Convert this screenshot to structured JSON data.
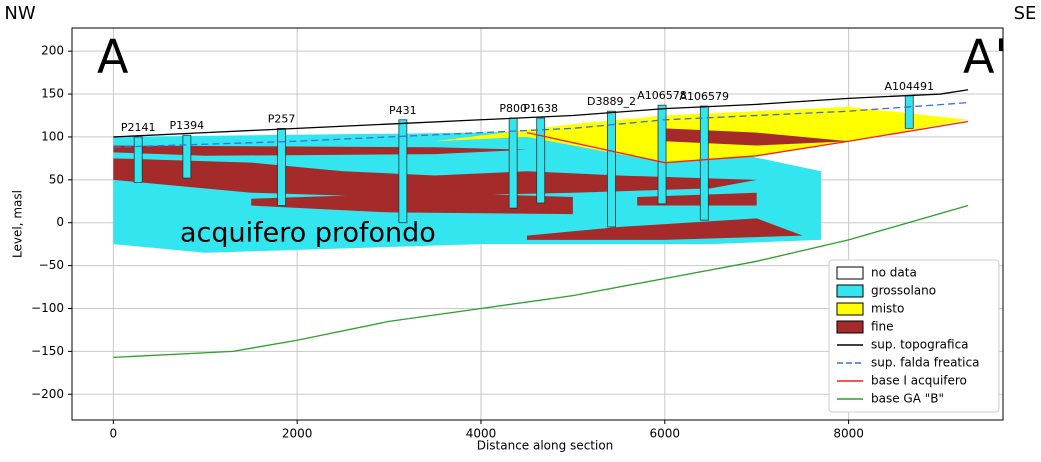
{
  "chart_data": {
    "type": "section",
    "corner_left": "NW",
    "corner_right": "SE",
    "section_start": "A",
    "section_end": "A'",
    "annotation": "acquifero profondo",
    "xlabel": "Distance along section",
    "ylabel": "Level, masl",
    "xlim": [
      -450,
      9680
    ],
    "ylim": [
      -230,
      227
    ],
    "xticks": [
      0,
      2000,
      4000,
      6000,
      8000
    ],
    "yticks": [
      {
        "value": -200,
        "label": "−200"
      },
      {
        "value": -150,
        "label": "−150"
      },
      {
        "value": -100,
        "label": "−100"
      },
      {
        "value": -50,
        "label": "−50"
      },
      0,
      50,
      100,
      150,
      200
    ],
    "grid": true,
    "legend": "lower right",
    "layers": [
      {
        "name": "no data",
        "color": "#ffffff",
        "polygons": []
      },
      {
        "name": "grossolano",
        "color": "#33e5ee",
        "polygons": [
          [
            [
              0,
              100
            ],
            [
              4000,
              105
            ],
            [
              5500,
              110
            ],
            [
              7700,
              60
            ],
            [
              7700,
              -20
            ],
            [
              6500,
              -25
            ],
            [
              4000,
              -25
            ],
            [
              1000,
              -35
            ],
            [
              0,
              -25
            ]
          ]
        ]
      },
      {
        "name": "misto",
        "color": "#ffff00",
        "polygons": [
          [
            [
              3500,
              95
            ],
            [
              5000,
              115
            ],
            [
              6000,
              125
            ],
            [
              8000,
              135
            ],
            [
              9300,
              120
            ],
            [
              8000,
              95
            ],
            [
              7000,
              78
            ],
            [
              6000,
              70
            ],
            [
              4500,
              100
            ]
          ]
        ]
      },
      {
        "name": "fine",
        "color": "#a52a2a",
        "polygons": [
          [
            [
              0,
              75
            ],
            [
              1500,
              70
            ],
            [
              2500,
              60
            ],
            [
              3500,
              55
            ],
            [
              4500,
              60
            ],
            [
              5500,
              55
            ],
            [
              7000,
              50
            ],
            [
              6500,
              40
            ],
            [
              5000,
              35
            ],
            [
              3000,
              30
            ],
            [
              1500,
              35
            ],
            [
              0,
              50
            ]
          ],
          [
            [
              1500,
              28
            ],
            [
              3500,
              35
            ],
            [
              5000,
              30
            ],
            [
              5000,
              10
            ],
            [
              3000,
              12
            ],
            [
              1500,
              20
            ]
          ],
          [
            [
              4500,
              -15
            ],
            [
              5500,
              -5
            ],
            [
              7000,
              5
            ],
            [
              7500,
              -15
            ],
            [
              6000,
              -20
            ],
            [
              4500,
              -20
            ]
          ],
          [
            [
              5700,
              30
            ],
            [
              7000,
              35
            ],
            [
              7000,
              20
            ],
            [
              5700,
              20
            ]
          ],
          [
            [
              0,
              90
            ],
            [
              3500,
              88
            ],
            [
              4500,
              85
            ],
            [
              3500,
              80
            ],
            [
              1000,
              78
            ],
            [
              0,
              82
            ]
          ],
          [
            [
              6000,
              110
            ],
            [
              7000,
              105
            ],
            [
              8000,
              95
            ],
            [
              7000,
              90
            ],
            [
              6000,
              95
            ]
          ]
        ]
      }
    ],
    "wells": [
      {
        "label": "P2141",
        "x": 270,
        "top": 100,
        "bottom": 47
      },
      {
        "label": "P1394",
        "x": 800,
        "top": 102,
        "bottom": 52
      },
      {
        "label": "P257",
        "x": 1830,
        "top": 110,
        "bottom": 20
      },
      {
        "label": "P431",
        "x": 3150,
        "top": 120,
        "bottom": 0
      },
      {
        "label": "P800",
        "x": 4350,
        "top": 122,
        "bottom": 17
      },
      {
        "label": "P1638",
        "x": 4650,
        "top": 122,
        "bottom": 23
      },
      {
        "label": "D3889_2",
        "x": 5420,
        "top": 130,
        "bottom": -5
      },
      {
        "label": "A106578",
        "x": 5970,
        "top": 137,
        "bottom": 22
      },
      {
        "label": "A106579",
        "x": 6430,
        "top": 136,
        "bottom": 3
      },
      {
        "label": "A104491",
        "x": 8660,
        "top": 148,
        "bottom": 110
      }
    ],
    "series": [
      {
        "name": "sup. topografica",
        "color": "#000000",
        "dash": false,
        "x": [
          0,
          1000,
          2000,
          3000,
          4000,
          5000,
          6000,
          7000,
          8000,
          9000,
          9300
        ],
        "values": [
          100,
          105,
          110,
          115,
          120,
          125,
          133,
          138,
          145,
          150,
          155
        ]
      },
      {
        "name": "sup. falda freatica",
        "color": "#3b6fd8",
        "dash": true,
        "x": [
          0,
          2000,
          4000,
          5000,
          6000,
          8000,
          9300
        ],
        "values": [
          88,
          95,
          105,
          110,
          120,
          130,
          140
        ]
      },
      {
        "name": "base I acquifero",
        "color": "#ff1a1a",
        "dash": false,
        "x": [
          4500,
          6000,
          7000,
          8000,
          9300
        ],
        "values": [
          105,
          70,
          78,
          95,
          118
        ]
      },
      {
        "name": "base GA \"B\"",
        "color": "#2ca02c",
        "dash": false,
        "x": [
          0,
          1300,
          2000,
          3000,
          4000,
          5000,
          6000,
          7000,
          8000,
          9300
        ],
        "values": [
          -157,
          -150,
          -137,
          -115,
          -100,
          -85,
          -65,
          -45,
          -20,
          20
        ]
      }
    ]
  }
}
